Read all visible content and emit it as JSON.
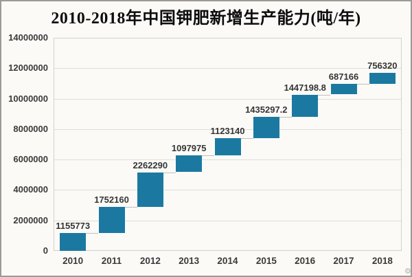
{
  "title": "2010-2018年中国钾肥新增生产能力(吨/年)",
  "colors": {
    "bar": "#1b79a1",
    "gridline": "#dddddb",
    "connector": "#bfbfbd",
    "plot_border": "#d0d0ce",
    "outer_border": "#9a9a98",
    "background": "#fbfaf7",
    "label_text": "#353535",
    "axis_text": "#3a3a3a",
    "title_text": "#0d0d0d"
  },
  "corner_icon": "gear-icon",
  "corner_glyph": "⚙",
  "chart_data": {
    "type": "bar",
    "subtype": "waterfall",
    "title": "2010-2018年中国钾肥新增生产能力(吨/年)",
    "categories": [
      "2010",
      "2011",
      "2012",
      "2013",
      "2014",
      "2015",
      "2016",
      "2017",
      "2018"
    ],
    "values": [
      1155773,
      1752160,
      2262290,
      1097975,
      1123140,
      1435297.2,
      1447198.8,
      687166,
      756320
    ],
    "value_labels": [
      "1155773",
      "1752160",
      "2262290",
      "1097975",
      "1123140",
      "1435297.2",
      "1447198.8",
      "687166",
      "756320"
    ],
    "cumulative": [
      1155773,
      2907933,
      5170223,
      6268198,
      7391338,
      8826635.2,
      10273834,
      10961000,
      11717320
    ],
    "xlabel": "",
    "ylabel": "",
    "ylim": [
      0,
      14000000
    ],
    "ytick_interval": 2000000,
    "yticks": [
      "0",
      "2000000",
      "4000000",
      "6000000",
      "8000000",
      "10000000",
      "12000000",
      "14000000"
    ],
    "grid": true,
    "legend_position": "none",
    "bar_orientation": "vertical",
    "connectors": true
  }
}
